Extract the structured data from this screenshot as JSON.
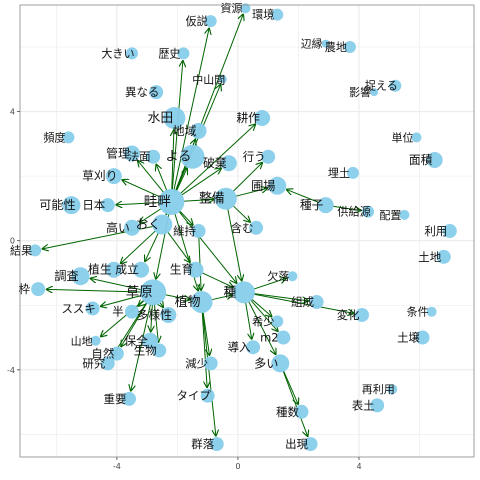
{
  "chart_data": {
    "type": "scatter",
    "title": "",
    "xlabel": "",
    "ylabel": "",
    "xlim": [
      -7.2,
      7.8
    ],
    "ylim": [
      -6.7,
      7.3
    ],
    "xticks": [
      -4,
      0,
      4
    ],
    "yticks": [
      4,
      0,
      -4
    ],
    "xtick_labels": [
      "-4",
      "0",
      "4"
    ],
    "ytick_labels": [
      "4",
      "0",
      "-4"
    ],
    "grid": true,
    "legend": "none",
    "colors": {
      "node": "#87ceeb",
      "edge": "#006400",
      "grid": "#ebebeb",
      "panel_border": "#888888"
    },
    "nodes": [
      {
        "label": "資源",
        "x": 0.25,
        "y": 7.2,
        "size": 5
      },
      {
        "label": "環境",
        "x": 1.3,
        "y": 7.0,
        "size": 6
      },
      {
        "label": "仮説",
        "x": -0.9,
        "y": 6.8,
        "size": 6
      },
      {
        "label": "辺縁",
        "x": 2.9,
        "y": 6.1,
        "size": 4
      },
      {
        "label": "農地",
        "x": 3.7,
        "y": 6.0,
        "size": 6
      },
      {
        "label": "大きい",
        "x": -3.5,
        "y": 5.8,
        "size": 6
      },
      {
        "label": "歴史",
        "x": -1.8,
        "y": 5.8,
        "size": 6
      },
      {
        "label": "中山間",
        "x": -0.5,
        "y": 5.0,
        "size": 4
      },
      {
        "label": "捉える",
        "x": 5.2,
        "y": 4.8,
        "size": 6
      },
      {
        "label": "異なる",
        "x": -2.7,
        "y": 4.6,
        "size": 7
      },
      {
        "label": "影響",
        "x": 4.5,
        "y": 4.6,
        "size": 4
      },
      {
        "label": "水田",
        "x": -2.1,
        "y": 3.8,
        "size": 11
      },
      {
        "label": "地域",
        "x": -1.3,
        "y": 3.4,
        "size": 8
      },
      {
        "label": "耕作",
        "x": 0.8,
        "y": 3.8,
        "size": 8
      },
      {
        "label": "頻度",
        "x": -5.6,
        "y": 3.2,
        "size": 6
      },
      {
        "label": "単位",
        "x": 5.9,
        "y": 3.2,
        "size": 5
      },
      {
        "label": "管理",
        "x": -3.5,
        "y": 2.7,
        "size": 8
      },
      {
        "label": "法面",
        "x": -2.8,
        "y": 2.6,
        "size": 7
      },
      {
        "label": "よる",
        "x": -1.5,
        "y": 2.6,
        "size": 12
      },
      {
        "label": "行う",
        "x": 1.0,
        "y": 2.6,
        "size": 7
      },
      {
        "label": "面積",
        "x": 6.5,
        "y": 2.5,
        "size": 8
      },
      {
        "label": "破棄",
        "x": -0.3,
        "y": 2.4,
        "size": 8
      },
      {
        "label": "草刈り",
        "x": -4.1,
        "y": 2.0,
        "size": 8
      },
      {
        "label": "埋土",
        "x": 3.8,
        "y": 2.1,
        "size": 6
      },
      {
        "label": "圃場",
        "x": 1.3,
        "y": 1.7,
        "size": 9
      },
      {
        "label": "可能性",
        "x": -5.5,
        "y": 1.1,
        "size": 9
      },
      {
        "label": "日本",
        "x": -4.3,
        "y": 1.1,
        "size": 7
      },
      {
        "label": "畦畔",
        "x": -2.2,
        "y": 1.2,
        "size": 13
      },
      {
        "label": "整備",
        "x": -0.4,
        "y": 1.3,
        "size": 11
      },
      {
        "label": "種子",
        "x": 2.9,
        "y": 1.1,
        "size": 8
      },
      {
        "label": "供給源",
        "x": 4.3,
        "y": 0.9,
        "size": 6
      },
      {
        "label": "配置",
        "x": 5.5,
        "y": 0.8,
        "size": 5
      },
      {
        "label": "高い",
        "x": -3.5,
        "y": 0.4,
        "size": 8
      },
      {
        "label": "おく",
        "x": -2.5,
        "y": 0.5,
        "size": 10
      },
      {
        "label": "維持",
        "x": -1.3,
        "y": 0.3,
        "size": 7
      },
      {
        "label": "含む",
        "x": 0.6,
        "y": 0.4,
        "size": 7
      },
      {
        "label": "利用",
        "x": 7.0,
        "y": 0.3,
        "size": 7
      },
      {
        "label": "結果",
        "x": -6.7,
        "y": -0.3,
        "size": 6
      },
      {
        "label": "土地",
        "x": 6.8,
        "y": -0.5,
        "size": 7
      },
      {
        "label": "植生",
        "x": -4.1,
        "y": -0.9,
        "size": 8
      },
      {
        "label": "成立",
        "x": -3.2,
        "y": -0.9,
        "size": 8
      },
      {
        "label": "生育",
        "x": -1.4,
        "y": -0.9,
        "size": 8
      },
      {
        "label": "調査",
        "x": -5.2,
        "y": -1.1,
        "size": 9
      },
      {
        "label": "欠落",
        "x": 1.8,
        "y": -1.1,
        "size": 5
      },
      {
        "label": "枠",
        "x": -6.6,
        "y": -1.5,
        "size": 7
      },
      {
        "label": "草原",
        "x": -2.8,
        "y": -1.6,
        "size": 13
      },
      {
        "label": "植物",
        "x": -1.2,
        "y": -1.9,
        "size": 11
      },
      {
        "label": "種",
        "x": 0.2,
        "y": -1.6,
        "size": 11
      },
      {
        "label": "組成",
        "x": 2.6,
        "y": -1.9,
        "size": 7
      },
      {
        "label": "ススキ",
        "x": -4.8,
        "y": -2.1,
        "size": 7
      },
      {
        "label": "半",
        "x": -3.5,
        "y": -2.2,
        "size": 7
      },
      {
        "label": "多様性",
        "x": -2.3,
        "y": -2.3,
        "size": 8
      },
      {
        "label": "変化",
        "x": 4.1,
        "y": -2.3,
        "size": 7
      },
      {
        "label": "条件",
        "x": 6.4,
        "y": -2.2,
        "size": 5
      },
      {
        "label": "希少",
        "x": 1.3,
        "y": -2.5,
        "size": 6
      },
      {
        "label": "山地",
        "x": -4.7,
        "y": -3.1,
        "size": 5
      },
      {
        "label": "保全",
        "x": -2.9,
        "y": -3.1,
        "size": 8
      },
      {
        "label": "m2",
        "x": 1.5,
        "y": -3.0,
        "size": 7
      },
      {
        "label": "土壌",
        "x": 6.1,
        "y": -3.0,
        "size": 7
      },
      {
        "label": "自然",
        "x": -4.0,
        "y": -3.5,
        "size": 7
      },
      {
        "label": "生物",
        "x": -2.6,
        "y": -3.4,
        "size": 7
      },
      {
        "label": "導入",
        "x": 0.5,
        "y": -3.3,
        "size": 7
      },
      {
        "label": "研究",
        "x": -4.3,
        "y": -3.8,
        "size": 7
      },
      {
        "label": "減少",
        "x": -0.9,
        "y": -3.8,
        "size": 7
      },
      {
        "label": "多い",
        "x": 1.4,
        "y": -3.8,
        "size": 9
      },
      {
        "label": "再利用",
        "x": 5.1,
        "y": -4.6,
        "size": 5
      },
      {
        "label": "タイプ",
        "x": -1.0,
        "y": -4.8,
        "size": 7
      },
      {
        "label": "重要",
        "x": -3.6,
        "y": -4.9,
        "size": 7
      },
      {
        "label": "表土",
        "x": 4.6,
        "y": -5.1,
        "size": 7
      },
      {
        "label": "種数",
        "x": 2.1,
        "y": -5.3,
        "size": 7
      },
      {
        "label": "群落",
        "x": -0.7,
        "y": -6.3,
        "size": 7
      },
      {
        "label": "出現",
        "x": 2.4,
        "y": -6.3,
        "size": 7
      }
    ],
    "edges": [
      [
        "畦畔",
        "資源"
      ],
      [
        "畦畔",
        "仮説"
      ],
      [
        "畦畔",
        "歴史"
      ],
      [
        "畦畔",
        "中山間"
      ],
      [
        "畦畔",
        "水田"
      ],
      [
        "畦畔",
        "地域"
      ],
      [
        "畦畔",
        "管理"
      ],
      [
        "畦畔",
        "法面"
      ],
      [
        "畦畔",
        "よる"
      ],
      [
        "畦畔",
        "草刈り"
      ],
      [
        "畦畔",
        "日本"
      ],
      [
        "畦畔",
        "高い"
      ],
      [
        "畦畔",
        "おく"
      ],
      [
        "畦畔",
        "維持"
      ],
      [
        "畦畔",
        "整備"
      ],
      [
        "畦畔",
        "破棄"
      ],
      [
        "畦畔",
        "耕作"
      ],
      [
        "畦畔",
        "植物"
      ],
      [
        "畦畔",
        "草原"
      ],
      [
        "畦畔",
        "種"
      ],
      [
        "整備",
        "圃場"
      ],
      [
        "整備",
        "行う"
      ],
      [
        "整備",
        "種"
      ],
      [
        "整備",
        "含む"
      ],
      [
        "種子",
        "圃場"
      ],
      [
        "種子",
        "供給源"
      ],
      [
        "おく",
        "結果"
      ],
      [
        "おく",
        "植生"
      ],
      [
        "おく",
        "成立"
      ],
      [
        "おく",
        "生育"
      ],
      [
        "草原",
        "調査"
      ],
      [
        "草原",
        "枠"
      ],
      [
        "草原",
        "ススキ"
      ],
      [
        "草原",
        "半"
      ],
      [
        "草原",
        "多様性"
      ],
      [
        "草原",
        "保全"
      ],
      [
        "草原",
        "生物"
      ],
      [
        "草原",
        "山地"
      ],
      [
        "草原",
        "自然"
      ],
      [
        "草原",
        "重要"
      ],
      [
        "草原",
        "研究"
      ],
      [
        "草原",
        "植物"
      ],
      [
        "植物",
        "減少"
      ],
      [
        "植物",
        "タイプ"
      ],
      [
        "植物",
        "種"
      ],
      [
        "植物",
        "群落"
      ],
      [
        "種",
        "欠落"
      ],
      [
        "種",
        "組成"
      ],
      [
        "種",
        "変化"
      ],
      [
        "種",
        "希少"
      ],
      [
        "種",
        "m2"
      ],
      [
        "種",
        "導入"
      ],
      [
        "種",
        "多い"
      ],
      [
        "多い",
        "種数"
      ],
      [
        "多い",
        "出現"
      ],
      [
        "生育",
        "種"
      ],
      [
        "維持",
        "植物"
      ]
    ]
  }
}
